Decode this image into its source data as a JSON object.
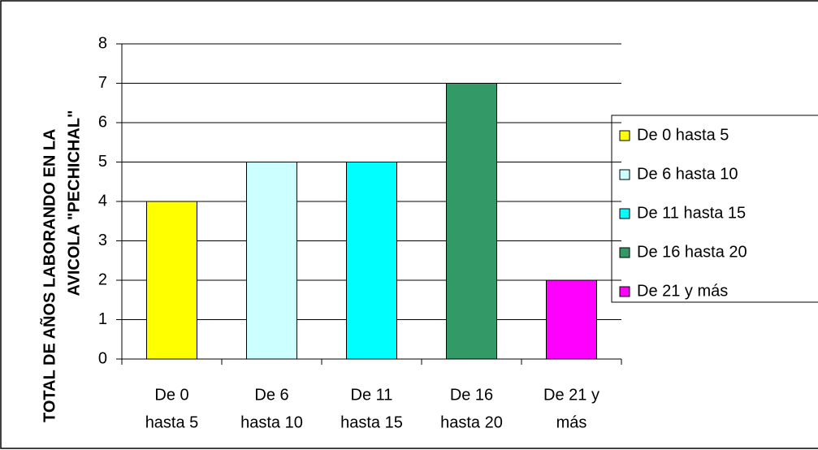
{
  "chart_data": {
    "type": "bar",
    "y_label": [
      "TOTAL DE AÑOS LABORANDO EN LA",
      "AVICOLA \"PECHICHAL\""
    ],
    "categories": [
      [
        "De 0",
        "hasta 5"
      ],
      [
        "De 6",
        "hasta 10"
      ],
      [
        "De 11",
        "hasta 15"
      ],
      [
        "De 16",
        "hasta 20"
      ],
      [
        "De 21 y",
        "más"
      ]
    ],
    "values": [
      4,
      5,
      5,
      7,
      2
    ],
    "colors": [
      "#ffff00",
      "#ccffff",
      "#00ffff",
      "#339966",
      "#ff00ff"
    ],
    "legend": [
      "De 0 hasta 5",
      "De 6 hasta 10",
      "De 11 hasta 15",
      "De 16 hasta 20",
      "De 21 y más"
    ],
    "ylim": [
      0,
      8
    ],
    "yticks": [
      0,
      1,
      2,
      3,
      4,
      5,
      6,
      7,
      8
    ],
    "grid": true
  }
}
